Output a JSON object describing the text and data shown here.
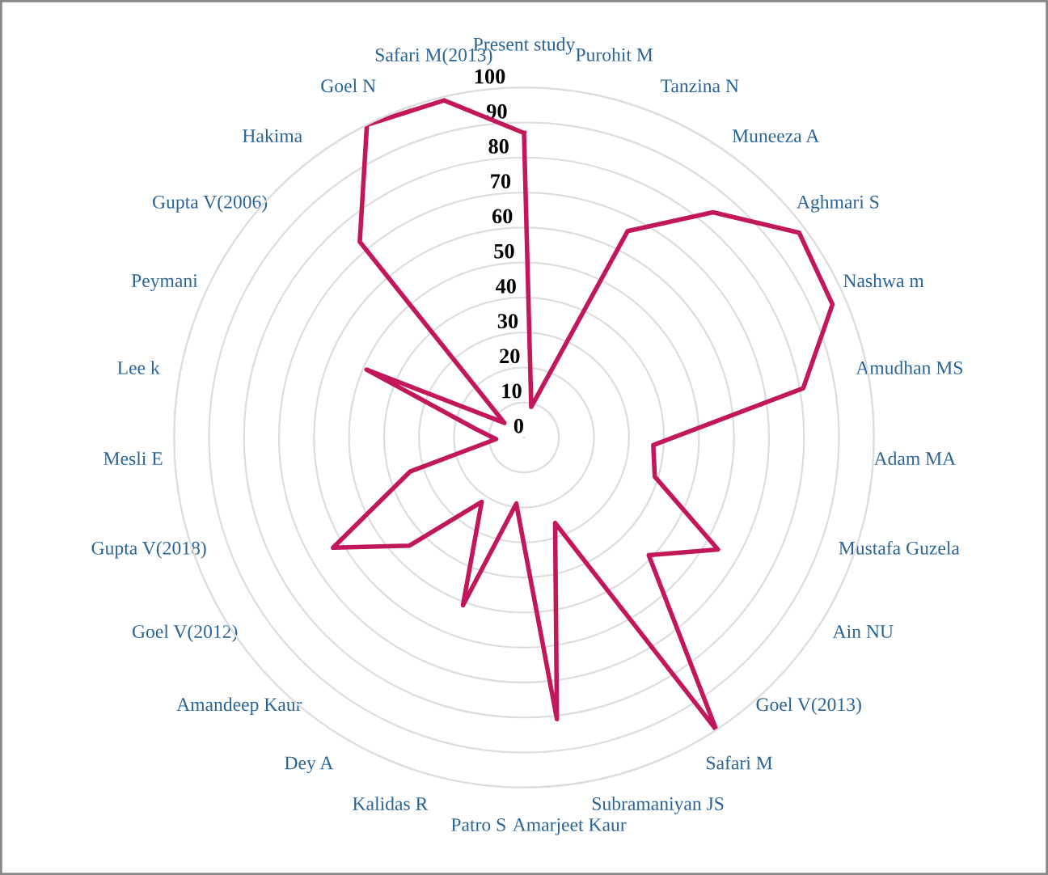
{
  "chart_data": {
    "type": "radar",
    "categories": [
      "Present study",
      "Purohit M",
      "Tanzina N",
      "Muneeza A",
      "Aghmari S",
      "Nashwa m",
      "Amudhan MS",
      "Adam MA",
      "Mustafa Guzela",
      "Ain NU",
      "Goel V(2013)",
      "Safari M",
      "Subramaniyan JS",
      "Amarjeet Kaur",
      "Patro S",
      "Kalidas R",
      "Dey A",
      "Amandeep Kaur",
      "Goel V(2012)",
      "Gupta V(2018)",
      "Mesli E",
      "Lee k",
      "Peymani",
      "Gupta V(2006)",
      "Hakima",
      "Goel N",
      "Safari M(2013)"
    ],
    "series": [
      {
        "color": "#c2185b",
        "values": [
          87,
          9,
          66,
          84,
          98,
          96,
          81,
          37,
          39,
          64,
          49,
          100,
          26,
          81,
          19,
          51,
          22,
          45,
          63,
          34,
          8,
          14,
          49,
          7,
          73,
          100,
          99
        ]
      }
    ],
    "ylim": [
      0,
      100
    ],
    "yticks": [
      0,
      10,
      20,
      30,
      40,
      50,
      60,
      70,
      80,
      90,
      100
    ],
    "grid": "y",
    "legend": false,
    "marker": "none",
    "line_style": "solid"
  }
}
